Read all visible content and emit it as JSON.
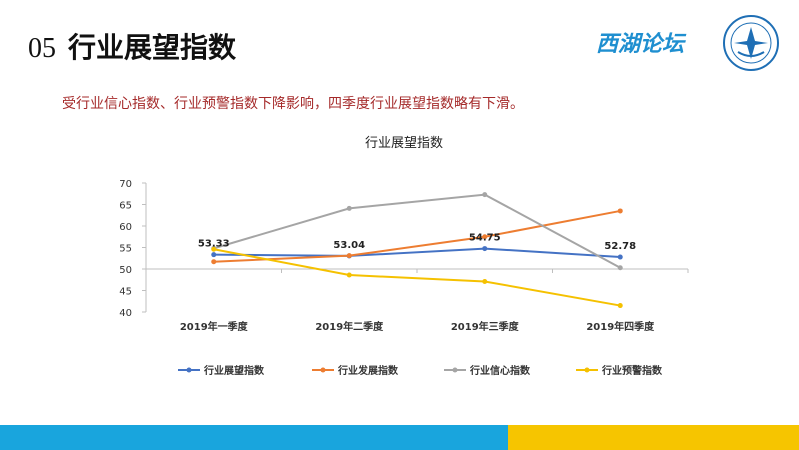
{
  "header": {
    "number": "05",
    "title": "行业展望指数",
    "brand": "西湖论坛"
  },
  "subtitle": "受行业信心指数、行业预警指数下降影响，四季度行业展望指数略有下滑。",
  "colors": {
    "blue_bar": "#19a5dd",
    "yellow_bar": "#f6c500"
  },
  "chart_data": {
    "type": "line",
    "title": "行业展望指数",
    "categories": [
      "2019年一季度",
      "2019年二季度",
      "2019年三季度",
      "2019年四季度"
    ],
    "ylim": [
      40,
      70
    ],
    "yticks": [
      40,
      45,
      50,
      55,
      60,
      65,
      70
    ],
    "grid": false,
    "legend": "bottom",
    "series": [
      {
        "name": "行业展望指数",
        "color": "#4472c4",
        "values": [
          53.33,
          53.04,
          54.75,
          52.78
        ],
        "labels": [
          "53.33",
          "53.04",
          "54.75",
          "52.78"
        ]
      },
      {
        "name": "行业发展指数",
        "color": "#ed7d31",
        "values": [
          51.7,
          53.1,
          57.5,
          63.5
        ]
      },
      {
        "name": "行业信心指数",
        "color": "#a5a5a5",
        "values": [
          54.8,
          64.1,
          67.3,
          50.3
        ]
      },
      {
        "name": "行业预警指数",
        "color": "#f5c100",
        "values": [
          54.6,
          48.6,
          47.1,
          41.5
        ]
      }
    ]
  }
}
